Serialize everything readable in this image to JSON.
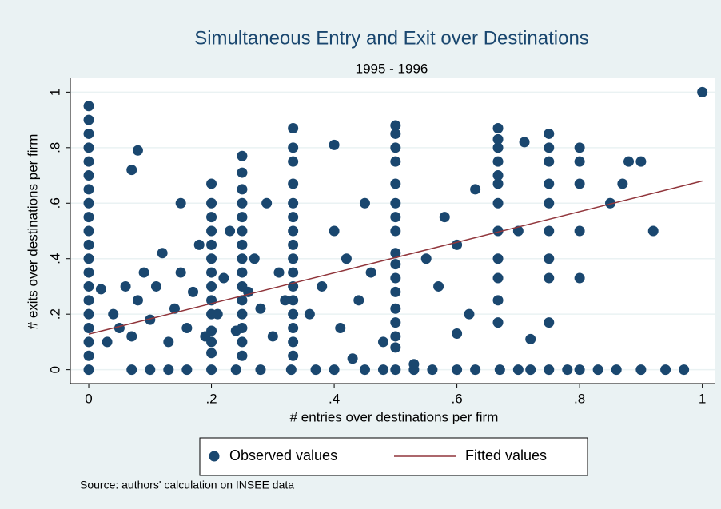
{
  "chart_data": {
    "type": "scatter",
    "title": "Simultaneous Entry and Exit over Destinations",
    "subtitle": "1995 - 1996",
    "x_label": "# entries over destinations per firm",
    "y_label": "# exits over destinations per firm",
    "source": "Source: authors' calculation on INSEE data",
    "xlim": [
      -0.03,
      1.02
    ],
    "ylim": [
      -0.05,
      1.05
    ],
    "xticks": [
      0,
      {
        "value": 0.2,
        "label": ".2"
      },
      {
        "value": 0.4,
        "label": ".4"
      },
      {
        "value": 0.6,
        "label": ".6"
      },
      {
        "value": 0.8,
        "label": ".8"
      },
      1
    ],
    "yticks": [
      0,
      {
        "value": 0.2,
        "label": ".2"
      },
      {
        "value": 0.4,
        "label": ".4"
      },
      {
        "value": 0.6,
        "label": ".6"
      },
      {
        "value": 0.8,
        "label": ".8"
      },
      1
    ],
    "grid": true,
    "series": [
      {
        "name": "Observed values",
        "kind": "scatter",
        "color": "#1a476f",
        "x": [
          0,
          0,
          0,
          0,
          0,
          0,
          0,
          0,
          0,
          0,
          0,
          0,
          0,
          0,
          0,
          0,
          0,
          0,
          0,
          0,
          0.07,
          0.1,
          0.13,
          0.16,
          0.2,
          0.24,
          0.28,
          0.33,
          0.37,
          0.4,
          0.45,
          0.48,
          0.5,
          0.53,
          0.56,
          0.6,
          0.63,
          0.67,
          0.7,
          0.72,
          0.75,
          0.78,
          0.8,
          0.83,
          0.86,
          0.9,
          0.94,
          0.97,
          0.333,
          0.333,
          0.333,
          0.333,
          0.333,
          0.333,
          0.333,
          0.333,
          0.333,
          0.333,
          0.333,
          0.333,
          0.333,
          0.333,
          0.333,
          0.333,
          0.5,
          0.5,
          0.5,
          0.5,
          0.5,
          0.5,
          0.5,
          0.5,
          0.5,
          0.5,
          0.5,
          0.5,
          0.5,
          0.5,
          0.5,
          0.5,
          0.667,
          0.667,
          0.667,
          0.667,
          0.667,
          0.667,
          0.667,
          0.667,
          0.667,
          0.667,
          0.667,
          0.667,
          0.75,
          0.75,
          0.75,
          0.75,
          0.75,
          0.75,
          0.75,
          0.75,
          0.75,
          0.8,
          0.8,
          0.8,
          0.8,
          0.8,
          0.25,
          0.25,
          0.25,
          0.25,
          0.25,
          0.25,
          0.25,
          0.25,
          0.25,
          0.25,
          0.25,
          0.25,
          0.25,
          0.25,
          0.25,
          0.2,
          0.2,
          0.2,
          0.2,
          0.2,
          0.2,
          0.2,
          0.2,
          0.2,
          0.2,
          0.2,
          0.2,
          0.2,
          0.03,
          0.04,
          0.05,
          0.06,
          0.07,
          0.08,
          0.09,
          0.1,
          0.11,
          0.12,
          0.13,
          0.14,
          0.15,
          0.15,
          0.16,
          0.17,
          0.18,
          0.19,
          0.21,
          0.22,
          0.23,
          0.24,
          0.26,
          0.27,
          0.28,
          0.29,
          0.3,
          0.31,
          0.32,
          0.36,
          0.38,
          0.4,
          0.41,
          0.42,
          0.44,
          0.45,
          0.46,
          0.48,
          0.08,
          0.07,
          0.02,
          0.55,
          0.57,
          0.6,
          0.62,
          0.63,
          0.58,
          0.7,
          0.72,
          0.71,
          0.85,
          0.88,
          0.9,
          0.92,
          0.87,
          1,
          0.4,
          0.53,
          0.43,
          0.6
        ],
        "values": [
          0,
          0.05,
          0.1,
          0.15,
          0.2,
          0.25,
          0.3,
          0.35,
          0.4,
          0.45,
          0.5,
          0.55,
          0.6,
          0.65,
          0.7,
          0.75,
          0.8,
          0.85,
          0.9,
          0.95,
          0,
          0,
          0,
          0,
          0,
          0,
          0,
          0,
          0,
          0,
          0,
          0,
          0,
          0,
          0,
          0,
          0,
          0,
          0,
          0,
          0,
          0,
          0,
          0,
          0,
          0,
          0,
          0,
          0.05,
          0.1,
          0.15,
          0.2,
          0.25,
          0.3,
          0.35,
          0.4,
          0.45,
          0.5,
          0.55,
          0.6,
          0.67,
          0.75,
          0.8,
          0.87,
          0.08,
          0.12,
          0.17,
          0.22,
          0.28,
          0.33,
          0.38,
          0.42,
          0.5,
          0.55,
          0.6,
          0.67,
          0.75,
          0.8,
          0.85,
          0.88,
          0.17,
          0.25,
          0.33,
          0.4,
          0.5,
          0.6,
          0.67,
          0.7,
          0.75,
          0.8,
          0.83,
          0.87,
          0.17,
          0.33,
          0.4,
          0.5,
          0.6,
          0.67,
          0.75,
          0.8,
          0.85,
          0.33,
          0.5,
          0.67,
          0.75,
          0.8,
          0.05,
          0.1,
          0.15,
          0.2,
          0.25,
          0.3,
          0.35,
          0.4,
          0.45,
          0.5,
          0.55,
          0.6,
          0.65,
          0.71,
          0.77,
          0.06,
          0.1,
          0.14,
          0.2,
          0.25,
          0.3,
          0.35,
          0.4,
          0.45,
          0.5,
          0.55,
          0.6,
          0.67,
          0.1,
          0.2,
          0.15,
          0.3,
          0.12,
          0.25,
          0.35,
          0.18,
          0.3,
          0.42,
          0.1,
          0.22,
          0.35,
          0.6,
          0.15,
          0.28,
          0.45,
          0.12,
          0.2,
          0.33,
          0.5,
          0.14,
          0.28,
          0.4,
          0.22,
          0.6,
          0.12,
          0.35,
          0.25,
          0.2,
          0.3,
          0.5,
          0.15,
          0.4,
          0.25,
          0.6,
          0.35,
          0.1,
          0.79,
          0.72,
          0.29,
          0.4,
          0.3,
          0.45,
          0.2,
          0.65,
          0.55,
          0.5,
          0.11,
          0.82,
          0.6,
          0.75,
          0.75,
          0.5,
          0.67,
          1,
          0.81,
          0.02,
          0.04,
          0.13
        ]
      },
      {
        "name": "Fitted values",
        "kind": "line",
        "color": "#90353b",
        "x": [
          0,
          1
        ],
        "values": [
          0.128,
          0.68
        ]
      }
    ]
  }
}
